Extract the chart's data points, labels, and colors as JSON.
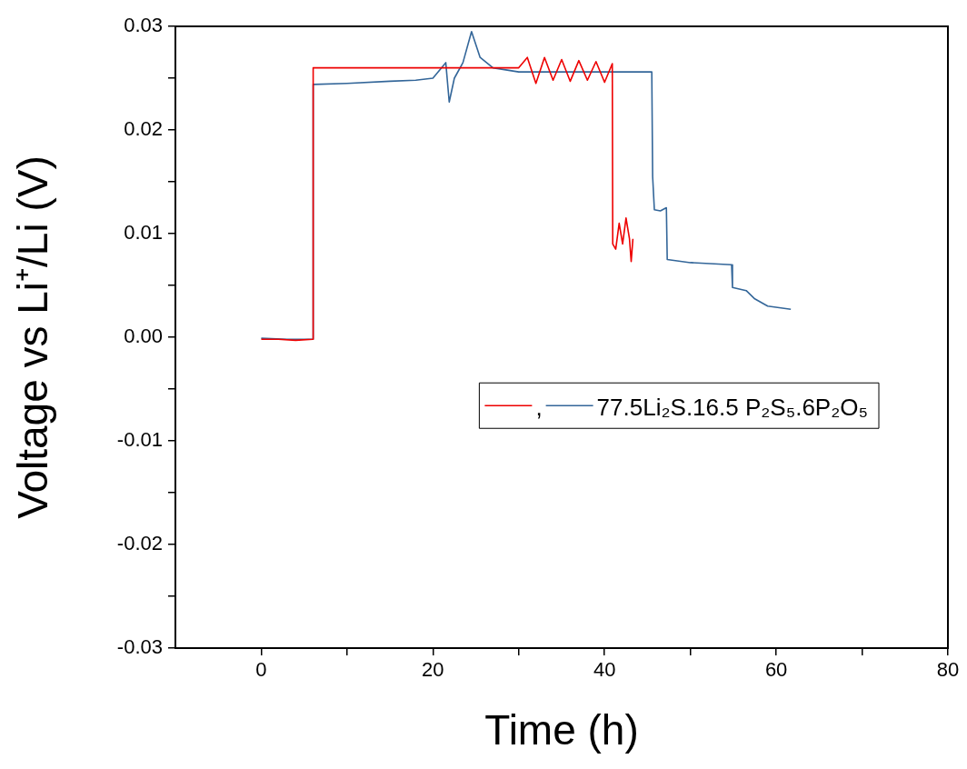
{
  "chart_data": {
    "type": "line",
    "xlabel": "Time (h)",
    "ylabel": "Voltage vs Li⁺/Li (V)",
    "xlim": [
      -10,
      80
    ],
    "ylim": [
      -0.03,
      0.03
    ],
    "xticks": [
      {
        "value": 0,
        "label": "0"
      },
      {
        "value": 10,
        "label": null
      },
      {
        "value": 20,
        "label": "20"
      },
      {
        "value": 30,
        "label": null
      },
      {
        "value": 40,
        "label": "40"
      },
      {
        "value": 50,
        "label": null
      },
      {
        "value": 60,
        "label": "60"
      },
      {
        "value": 70,
        "label": null
      },
      {
        "value": 80,
        "label": "80"
      }
    ],
    "yticks": [
      {
        "value": -0.03,
        "label": "-0.03"
      },
      {
        "value": -0.025,
        "label": null
      },
      {
        "value": -0.02,
        "label": "-0.02"
      },
      {
        "value": -0.015,
        "label": null
      },
      {
        "value": -0.01,
        "label": "-0.01"
      },
      {
        "value": -0.005,
        "label": null
      },
      {
        "value": 0,
        "label": "0.00"
      },
      {
        "value": 0.005,
        "label": null
      },
      {
        "value": 0.01,
        "label": "0.01"
      },
      {
        "value": 0.015,
        "label": null
      },
      {
        "value": 0.02,
        "label": "0.02"
      },
      {
        "value": 0.025,
        "label": null
      },
      {
        "value": 0.03,
        "label": "0.03"
      }
    ],
    "grid": false,
    "legend": "right",
    "marker": "none",
    "line_style": "solid",
    "series": [
      {
        "name": ",",
        "color": "#ee0000",
        "x": [
          0,
          2,
          4,
          6,
          6.05,
          10,
          20,
          30,
          31,
          32,
          33,
          34,
          35,
          36,
          37,
          38,
          39,
          40,
          40.9,
          40.95,
          41.3,
          41.7,
          42.1,
          42.5,
          42.9,
          43.1,
          43.3
        ],
        "values": [
          -0.0002,
          -0.0002,
          -0.0003,
          -0.0002,
          0.026,
          0.026,
          0.026,
          0.026,
          0.027,
          0.0245,
          0.027,
          0.0248,
          0.0268,
          0.0247,
          0.0267,
          0.0248,
          0.0266,
          0.0246,
          0.0264,
          0.009,
          0.0085,
          0.011,
          0.009,
          0.0115,
          0.0095,
          0.0073,
          0.0095
        ]
      },
      {
        "name": "77.5Li₂S.16.5 P₂S₅.6P₂O₅",
        "color": "#336699",
        "x": [
          0,
          3,
          6,
          6.05,
          10,
          15,
          18,
          20,
          21.5,
          21.9,
          22.5,
          23.5,
          24.5,
          25.5,
          27,
          30,
          35,
          40,
          45.5,
          45.6,
          45.8,
          46.5,
          47.2,
          47.3,
          50,
          54.8,
          54.9,
          56.5,
          57.5,
          59,
          61.7
        ],
        "values": [
          -0.0001,
          -0.0002,
          -0.0002,
          0.0244,
          0.0245,
          0.0247,
          0.0248,
          0.025,
          0.0265,
          0.0227,
          0.025,
          0.0265,
          0.0295,
          0.027,
          0.026,
          0.0256,
          0.0256,
          0.0256,
          0.0256,
          0.0155,
          0.0123,
          0.0122,
          0.0125,
          0.0075,
          0.0072,
          0.007,
          0.0048,
          0.0045,
          0.0037,
          0.003,
          0.0027
        ]
      }
    ]
  }
}
